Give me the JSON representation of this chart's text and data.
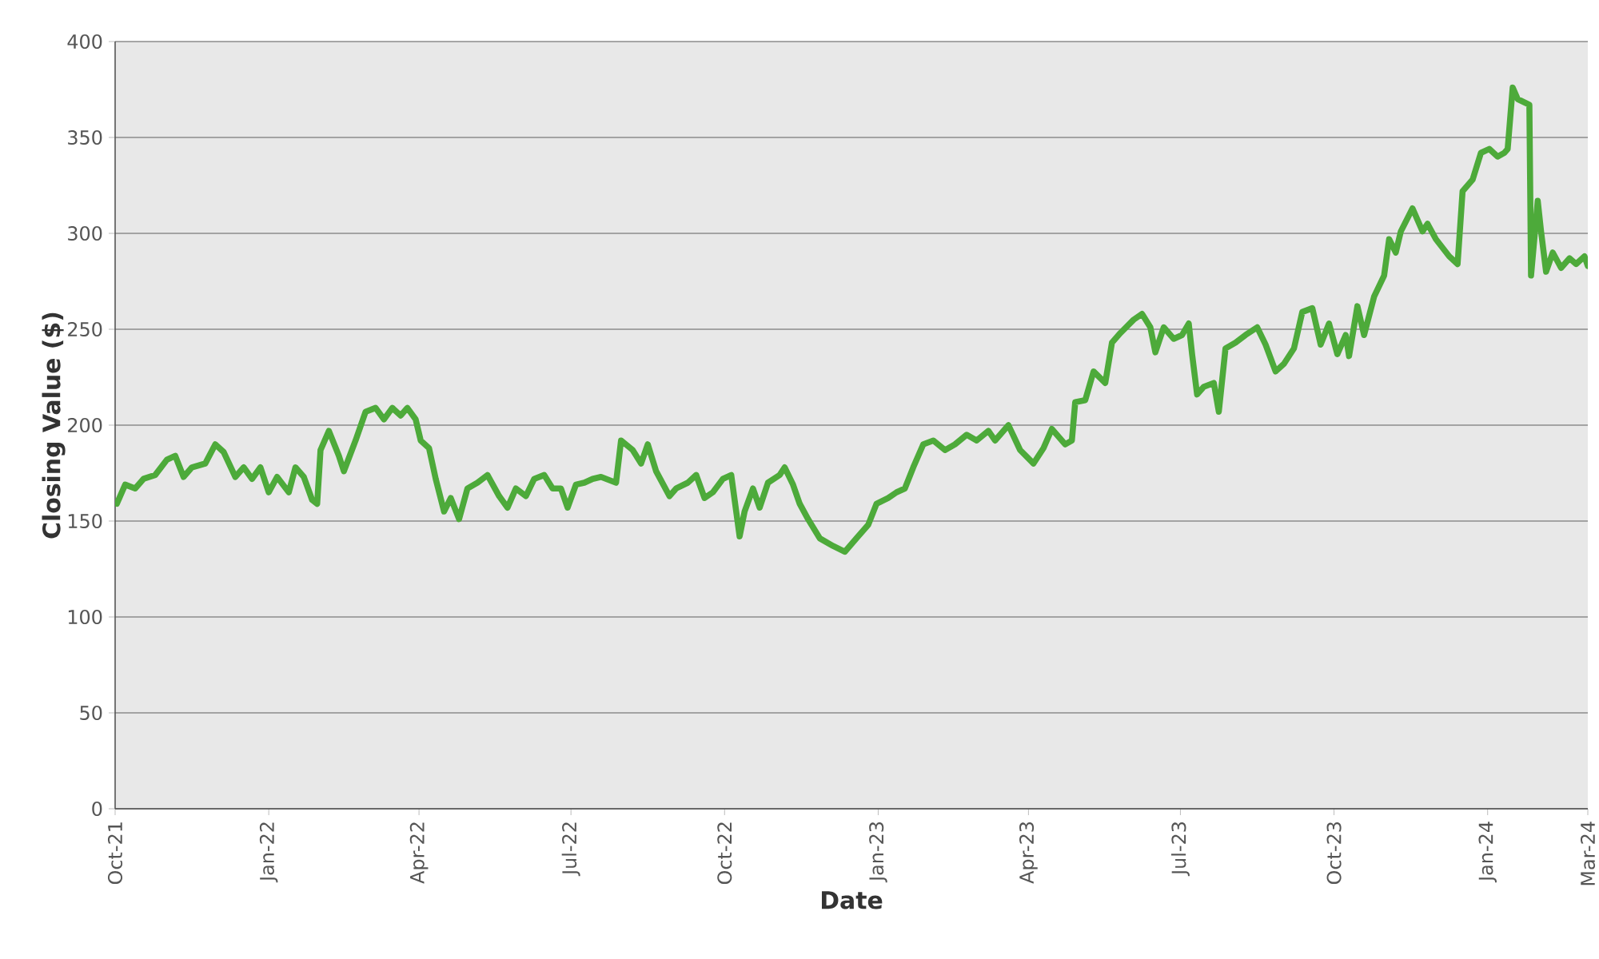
{
  "chart_data": {
    "type": "line",
    "xlabel": "Date",
    "ylabel": "Closing Value ($)",
    "xlim": [
      "2021-10-01",
      "2024-03-01"
    ],
    "xticks": [
      {
        "value": "2021-10-01",
        "label": "Oct-21"
      },
      {
        "value": "2022-01-01",
        "label": "Jan-22"
      },
      {
        "value": "2022-04-01",
        "label": "Apr-22"
      },
      {
        "value": "2022-07-01",
        "label": "Jul-22"
      },
      {
        "value": "2022-10-01",
        "label": "Oct-22"
      },
      {
        "value": "2023-01-01",
        "label": "Jan-23"
      },
      {
        "value": "2023-04-01",
        "label": "Apr-23"
      },
      {
        "value": "2023-07-01",
        "label": "Jul-23"
      },
      {
        "value": "2023-10-01",
        "label": "Oct-23"
      },
      {
        "value": "2024-01-01",
        "label": "Jan-24"
      },
      {
        "value": "2024-03-01",
        "label": "Mar-24"
      }
    ],
    "ylim": [
      0,
      400
    ],
    "yticks": [
      0,
      50,
      100,
      150,
      200,
      250,
      300,
      350,
      400
    ],
    "grid": "y",
    "marker": "none",
    "line_style": "solid",
    "x": [
      "2021-10-02",
      "2021-10-07",
      "2021-10-13",
      "2021-10-18",
      "2021-10-25",
      "2021-11-01",
      "2021-11-06",
      "2021-11-11",
      "2021-11-16",
      "2021-11-24",
      "2021-11-30",
      "2021-12-05",
      "2021-12-12",
      "2021-12-17",
      "2021-12-22",
      "2021-12-27",
      "2022-01-01",
      "2022-01-06",
      "2022-01-13",
      "2022-01-17",
      "2022-01-22",
      "2022-01-27",
      "2022-01-30",
      "2022-02-01",
      "2022-02-06",
      "2022-02-12",
      "2022-02-15",
      "2022-02-22",
      "2022-02-28",
      "2022-03-06",
      "2022-03-11",
      "2022-03-16",
      "2022-03-21",
      "2022-03-25",
      "2022-03-30",
      "2022-04-02",
      "2022-04-07",
      "2022-04-11",
      "2022-04-16",
      "2022-04-20",
      "2022-04-25",
      "2022-04-30",
      "2022-05-06",
      "2022-05-12",
      "2022-05-19",
      "2022-05-24",
      "2022-05-29",
      "2022-06-04",
      "2022-06-09",
      "2022-06-15",
      "2022-06-20",
      "2022-06-25",
      "2022-06-29",
      "2022-07-04",
      "2022-07-09",
      "2022-07-14",
      "2022-07-19",
      "2022-07-28",
      "2022-07-31",
      "2022-08-07",
      "2022-08-12",
      "2022-08-16",
      "2022-08-21",
      "2022-08-29",
      "2022-09-02",
      "2022-09-09",
      "2022-09-14",
      "2022-09-19",
      "2022-09-24",
      "2022-09-30",
      "2022-10-05",
      "2022-10-10",
      "2022-10-13",
      "2022-10-18",
      "2022-10-22",
      "2022-10-27",
      "2022-11-03",
      "2022-11-06",
      "2022-11-11",
      "2022-11-15",
      "2022-11-20",
      "2022-11-27",
      "2022-12-05",
      "2022-12-12",
      "2022-12-19",
      "2022-12-26",
      "2022-12-31",
      "2023-01-07",
      "2023-01-12",
      "2023-01-17",
      "2023-01-22",
      "2023-01-28",
      "2023-02-03",
      "2023-02-10",
      "2023-02-16",
      "2023-02-23",
      "2023-03-01",
      "2023-03-08",
      "2023-03-12",
      "2023-03-20",
      "2023-03-27",
      "2023-04-04",
      "2023-04-10",
      "2023-04-15",
      "2023-04-23",
      "2023-04-27",
      "2023-04-29",
      "2023-05-05",
      "2023-05-10",
      "2023-05-17",
      "2023-05-21",
      "2023-05-26",
      "2023-06-03",
      "2023-06-08",
      "2023-06-13",
      "2023-06-16",
      "2023-06-21",
      "2023-06-27",
      "2023-07-02",
      "2023-07-06",
      "2023-07-08",
      "2023-07-11",
      "2023-07-15",
      "2023-07-21",
      "2023-07-24",
      "2023-07-28",
      "2023-08-03",
      "2023-08-09",
      "2023-08-16",
      "2023-08-21",
      "2023-08-27",
      "2023-09-01",
      "2023-09-07",
      "2023-09-12",
      "2023-09-18",
      "2023-09-23",
      "2023-09-28",
      "2023-10-03",
      "2023-10-08",
      "2023-10-10",
      "2023-10-15",
      "2023-10-19",
      "2023-10-25",
      "2023-10-31",
      "2023-11-03",
      "2023-11-07",
      "2023-11-10",
      "2023-11-17",
      "2023-11-23",
      "2023-11-26",
      "2023-12-01",
      "2023-12-09",
      "2023-12-14",
      "2023-12-17",
      "2023-12-23",
      "2023-12-28",
      "2024-01-02",
      "2024-01-07",
      "2024-01-11",
      "2024-01-13",
      "2024-01-16",
      "2024-01-19",
      "2024-01-26",
      "2024-01-27",
      "2024-01-31",
      "2024-02-02",
      "2024-02-05",
      "2024-02-09",
      "2024-02-14",
      "2024-02-19",
      "2024-02-23",
      "2024-02-28",
      "2024-03-01"
    ],
    "series": [
      {
        "color": "#4daa3a",
        "values": [
          159,
          169,
          167,
          172,
          174,
          182,
          184,
          173,
          178,
          180,
          190,
          186,
          173,
          178,
          172,
          178,
          165,
          173,
          165,
          178,
          173,
          161,
          159,
          187,
          197,
          184,
          176,
          192,
          207,
          209,
          203,
          209,
          205,
          209,
          203,
          192,
          188,
          172,
          155,
          162,
          151,
          167,
          170,
          174,
          163,
          157,
          167,
          163,
          172,
          174,
          167,
          167,
          157,
          169,
          170,
          172,
          173,
          170,
          192,
          187,
          180,
          190,
          176,
          163,
          167,
          170,
          174,
          162,
          165,
          172,
          174,
          142,
          155,
          167,
          157,
          170,
          174,
          178,
          169,
          159,
          151,
          141,
          137,
          134,
          141,
          148,
          159,
          162,
          165,
          167,
          178,
          190,
          192,
          187,
          190,
          195,
          192,
          197,
          192,
          200,
          187,
          180,
          188,
          198,
          190,
          192,
          212,
          213,
          228,
          222,
          243,
          248,
          255,
          258,
          251,
          238,
          251,
          245,
          247,
          253,
          237,
          216,
          220,
          222,
          207,
          240,
          243,
          247,
          251,
          242,
          228,
          232,
          240,
          259,
          261,
          242,
          253,
          237,
          247,
          236,
          262,
          247,
          267,
          278,
          297,
          290,
          301,
          313,
          301,
          305,
          297,
          288,
          284,
          322,
          328,
          342,
          344,
          340,
          342,
          344,
          376,
          370,
          367,
          278,
          317,
          301,
          280,
          290,
          282,
          287,
          284,
          288,
          283
        ]
      }
    ]
  }
}
